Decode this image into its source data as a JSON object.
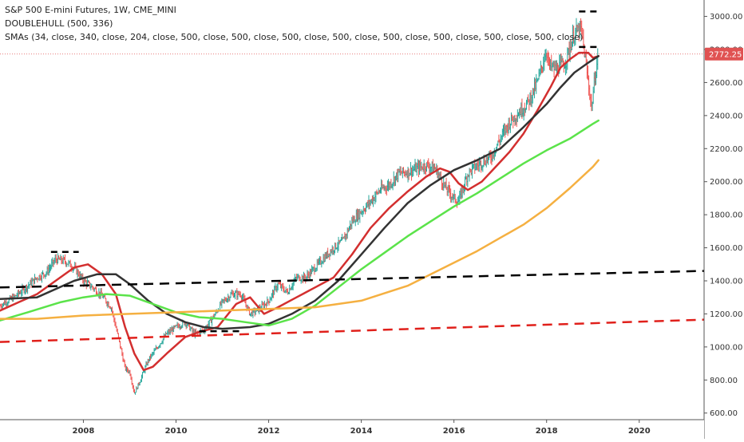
{
  "chart_data": {
    "type": "line",
    "title": "S&P 500 E-mini Futures, 1W, CME_MINI",
    "legend": [
      "S&P 500 E-mini Futures, 1W, CME_MINI",
      "DOUBLEHULL (500, 336)",
      "SMAs (34, close, 340, close, 204, close, 500, close, 500, close, 500, close, 500, close, 500, close, 500, close, 500, close, 500, close)"
    ],
    "xlim": [
      2006.2,
      2021.4
    ],
    "ylim": [
      560,
      3080
    ],
    "x_ticks": [
      {
        "value": 2008,
        "label": "2008"
      },
      {
        "value": 2010,
        "label": "2010"
      },
      {
        "value": 2012,
        "label": "2012"
      },
      {
        "value": 2014,
        "label": "2014"
      },
      {
        "value": 2016,
        "label": "2016"
      },
      {
        "value": 2018,
        "label": "2018"
      },
      {
        "value": 2020,
        "label": "2020"
      }
    ],
    "y_ticks": [
      {
        "value": 3000,
        "label": "3000.00"
      },
      {
        "value": 2800,
        "label": "2800.00"
      },
      {
        "value": 2600,
        "label": "2600.00"
      },
      {
        "value": 2400,
        "label": "2400.00"
      },
      {
        "value": 2200,
        "label": "2200.00"
      },
      {
        "value": 2000,
        "label": "2000.00"
      },
      {
        "value": 1800,
        "label": "1800.00"
      },
      {
        "value": 1600,
        "label": "1600.00"
      },
      {
        "value": 1400,
        "label": "1400.00"
      },
      {
        "value": 1200,
        "label": "1200.00"
      },
      {
        "value": 1000,
        "label": "1000.00"
      },
      {
        "value": 800,
        "label": "800.00"
      },
      {
        "value": 600,
        "label": "600.00"
      }
    ],
    "last_price": {
      "value": 2772.25,
      "label": "2772.25",
      "color": "#e05252"
    },
    "grid": false,
    "colors": {
      "up": "#26a69a",
      "down": "#ef5350",
      "wick": "#555555",
      "sma_red": "#d32f2f",
      "hull_black": "#333333",
      "sma_green": "#5be34a",
      "sma_orange": "#f5b041",
      "trend_black": "#000000",
      "trend_red": "#e0201b"
    },
    "price_series": {
      "name": "",
      "x": [
        2006.2,
        2006.5,
        2006.8,
        2007.0,
        2007.2,
        2007.4,
        2007.6,
        2007.8,
        2008.0,
        2008.2,
        2008.4,
        2008.6,
        2008.8,
        2008.9,
        2009.0,
        2009.1,
        2009.2,
        2009.4,
        2009.6,
        2009.8,
        2010.0,
        2010.2,
        2010.4,
        2010.6,
        2010.8,
        2011.0,
        2011.2,
        2011.4,
        2011.6,
        2011.8,
        2012.0,
        2012.2,
        2012.4,
        2012.6,
        2012.8,
        2013.0,
        2013.2,
        2013.4,
        2013.6,
        2013.8,
        2014.0,
        2014.2,
        2014.4,
        2014.6,
        2014.8,
        2015.0,
        2015.2,
        2015.4,
        2015.6,
        2015.8,
        2016.0,
        2016.1,
        2016.3,
        2016.5,
        2016.8,
        2017.0,
        2017.2,
        2017.4,
        2017.6,
        2017.8,
        2018.0,
        2018.05,
        2018.2,
        2018.4,
        2018.6,
        2018.75,
        2018.9,
        2018.97,
        2019.05,
        2019.12
      ],
      "y": [
        1250,
        1300,
        1370,
        1420,
        1450,
        1530,
        1520,
        1480,
        1400,
        1360,
        1310,
        1240,
        1000,
        870,
        850,
        720,
        780,
        920,
        1000,
        1080,
        1120,
        1150,
        1080,
        1100,
        1180,
        1270,
        1320,
        1320,
        1200,
        1230,
        1280,
        1380,
        1330,
        1420,
        1420,
        1480,
        1540,
        1600,
        1640,
        1760,
        1820,
        1880,
        1950,
        1980,
        2050,
        2060,
        2080,
        2100,
        2080,
        1970,
        1900,
        1880,
        2050,
        2100,
        2150,
        2260,
        2360,
        2420,
        2480,
        2600,
        2800,
        2700,
        2680,
        2720,
        2900,
        2920,
        2600,
        2450,
        2650,
        2772
      ]
    },
    "series": [
      {
        "key": "sma_red",
        "x": [
          2006.2,
          2006.6,
          2007.0,
          2007.4,
          2007.8,
          2008.1,
          2008.4,
          2008.7,
          2008.9,
          2009.1,
          2009.3,
          2009.5,
          2009.8,
          2010.2,
          2010.5,
          2010.9,
          2011.3,
          2011.6,
          2011.9,
          2012.2,
          2012.6,
          2013.0,
          2013.4,
          2013.8,
          2014.2,
          2014.6,
          2015.0,
          2015.4,
          2015.7,
          2015.9,
          2016.1,
          2016.3,
          2016.6,
          2016.9,
          2017.2,
          2017.5,
          2017.8,
          2018.1,
          2018.3,
          2018.5,
          2018.7,
          2018.9,
          2019.0,
          2019.12
        ],
        "y": [
          1220,
          1270,
          1320,
          1400,
          1480,
          1500,
          1440,
          1320,
          1120,
          960,
          860,
          880,
          960,
          1060,
          1090,
          1120,
          1260,
          1300,
          1200,
          1240,
          1300,
          1360,
          1420,
          1560,
          1720,
          1840,
          1940,
          2030,
          2080,
          2060,
          1990,
          1950,
          2000,
          2090,
          2180,
          2290,
          2430,
          2580,
          2690,
          2740,
          2780,
          2780,
          2750,
          2760
        ]
      },
      {
        "key": "hull_black",
        "x": [
          2006.2,
          2007.0,
          2007.8,
          2008.3,
          2008.7,
          2009.0,
          2009.4,
          2009.8,
          2010.2,
          2010.6,
          2011.0,
          2011.6,
          2012.0,
          2012.5,
          2013.0,
          2013.5,
          2014.0,
          2014.5,
          2015.0,
          2015.5,
          2016.0,
          2016.5,
          2017.0,
          2017.5,
          2018.0,
          2018.3,
          2018.6,
          2018.9,
          2019.12
        ],
        "y": [
          1290,
          1300,
          1400,
          1440,
          1440,
          1380,
          1280,
          1200,
          1150,
          1120,
          1110,
          1120,
          1140,
          1200,
          1280,
          1400,
          1560,
          1720,
          1870,
          1980,
          2070,
          2130,
          2200,
          2330,
          2470,
          2570,
          2660,
          2720,
          2760
        ]
      },
      {
        "key": "sma_green",
        "x": [
          2006.2,
          2006.8,
          2007.5,
          2008.0,
          2008.5,
          2009.0,
          2009.5,
          2010.0,
          2010.5,
          2011.0,
          2011.5,
          2012.0,
          2012.5,
          2013.0,
          2013.5,
          2014.0,
          2014.5,
          2015.0,
          2015.5,
          2016.0,
          2016.5,
          2017.0,
          2017.5,
          2018.0,
          2018.5,
          2019.0,
          2019.12
        ],
        "y": [
          1160,
          1210,
          1270,
          1300,
          1320,
          1310,
          1260,
          1210,
          1180,
          1170,
          1150,
          1130,
          1170,
          1250,
          1360,
          1470,
          1570,
          1670,
          1760,
          1850,
          1930,
          2020,
          2110,
          2190,
          2260,
          2350,
          2370
        ]
      },
      {
        "key": "sma_orange",
        "x": [
          2006.2,
          2007.0,
          2008.0,
          2009.0,
          2010.0,
          2011.0,
          2012.0,
          2013.0,
          2014.0,
          2015.0,
          2015.5,
          2016.0,
          2016.5,
          2017.0,
          2017.5,
          2018.0,
          2018.5,
          2019.0,
          2019.12
        ],
        "y": [
          1170,
          1170,
          1190,
          1200,
          1210,
          1220,
          1230,
          1240,
          1280,
          1370,
          1440,
          1510,
          1580,
          1660,
          1740,
          1840,
          1960,
          2090,
          2130
        ]
      }
    ],
    "trend_lines": [
      {
        "key": "trend_black",
        "x": [
          2006.2,
          2021.4
        ],
        "y": [
          1360,
          1460
        ]
      },
      {
        "key": "trend_red",
        "x": [
          2006.2,
          2021.4
        ],
        "y": [
          1030,
          1165
        ]
      }
    ],
    "level_marks": [
      {
        "x": [
          2018.7,
          2019.1
        ],
        "y": [
          3030,
          3030
        ]
      },
      {
        "x": [
          2018.7,
          2019.1
        ],
        "y": [
          2815,
          2815
        ]
      },
      {
        "x": [
          2007.3,
          2007.9
        ],
        "y": [
          1575,
          1575
        ]
      },
      {
        "x": [
          2010.5,
          2011.4
        ],
        "y": [
          1095,
          1095
        ]
      }
    ]
  }
}
